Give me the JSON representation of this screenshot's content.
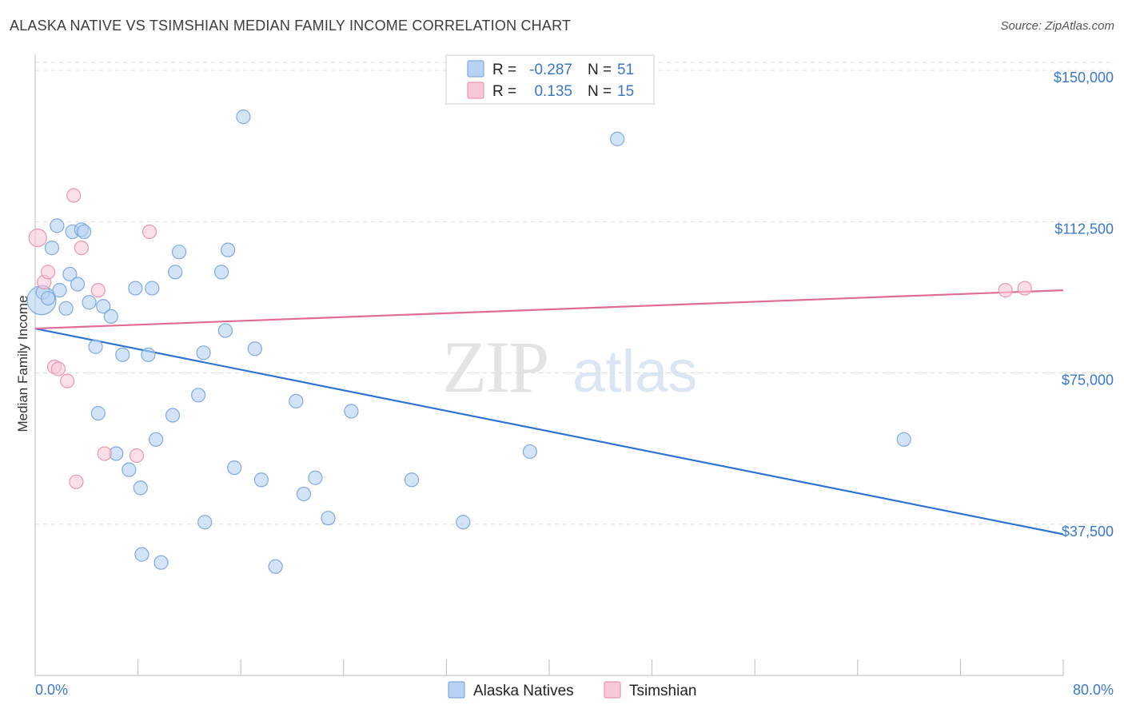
{
  "title": "ALASKA NATIVE VS TSIMSHIAN MEDIAN FAMILY INCOME CORRELATION CHART",
  "source": "Source: ZipAtlas.com",
  "watermark": {
    "zip": "ZIP",
    "atlas": "atlas"
  },
  "colors": {
    "alaska_fill": "#b8d2f2",
    "alaska_stroke": "#7eaae0",
    "alaska_line": "#2f74d0",
    "tsim_fill": "#f7c9d8",
    "tsim_stroke": "#e897b3",
    "tsim_line": "#e06b93",
    "axis_label": "#3a78c9",
    "grid": "#dddddd"
  },
  "legend": {
    "rows": [
      {
        "r_label": "R =",
        "r_value": "-0.287",
        "n_label": "N =",
        "n_value": "51"
      },
      {
        "r_label": "R =",
        "r_value": "0.135",
        "n_label": "N =",
        "n_value": "15"
      }
    ]
  },
  "bottom_legend": [
    "Alaska Natives",
    "Tsimshian"
  ],
  "chart_data": {
    "type": "scatter",
    "title": "ALASKA NATIVE VS TSIMSHIAN MEDIAN FAMILY INCOME CORRELATION CHART",
    "xlabel": "",
    "ylabel": "Median Family Income",
    "xlim": [
      0,
      80
    ],
    "ylim": [
      0,
      152000
    ],
    "x_tick_labels": [
      "0.0%",
      "80.0%"
    ],
    "y_ticks": [
      37500,
      75000,
      112500,
      150000
    ],
    "y_tick_labels": [
      "$37,500",
      "$75,000",
      "$112,500",
      "$150,000"
    ],
    "grid": true,
    "legend_position": "top-center",
    "series": [
      {
        "name": "Alaska Natives",
        "r": -0.287,
        "n": 51,
        "trend": {
          "x": [
            0,
            80
          ],
          "y": [
            86000,
            35000
          ]
        },
        "points": [
          [
            0.5,
            93000
          ],
          [
            0.6,
            95000
          ],
          [
            1.0,
            93500
          ],
          [
            1.3,
            106000
          ],
          [
            1.7,
            111500
          ],
          [
            1.9,
            95500
          ],
          [
            2.4,
            91000
          ],
          [
            2.7,
            99500
          ],
          [
            2.9,
            110000
          ],
          [
            3.3,
            97000
          ],
          [
            3.6,
            110500
          ],
          [
            3.8,
            110000
          ],
          [
            4.2,
            92500
          ],
          [
            4.7,
            81500
          ],
          [
            4.9,
            65000
          ],
          [
            5.3,
            91500
          ],
          [
            5.9,
            89000
          ],
          [
            6.3,
            55000
          ],
          [
            6.8,
            79500
          ],
          [
            7.3,
            51000
          ],
          [
            7.8,
            96000
          ],
          [
            8.2,
            46500
          ],
          [
            8.3,
            30000
          ],
          [
            8.8,
            79500
          ],
          [
            9.1,
            96000
          ],
          [
            9.4,
            58500
          ],
          [
            9.8,
            28000
          ],
          [
            10.7,
            64500
          ],
          [
            10.9,
            100000
          ],
          [
            11.2,
            105000
          ],
          [
            12.7,
            69500
          ],
          [
            13.1,
            80000
          ],
          [
            13.2,
            38000
          ],
          [
            14.5,
            100000
          ],
          [
            14.8,
            85500
          ],
          [
            15.0,
            105500
          ],
          [
            15.5,
            51500
          ],
          [
            16.2,
            138500
          ],
          [
            17.1,
            81000
          ],
          [
            17.6,
            48500
          ],
          [
            18.7,
            27000
          ],
          [
            20.3,
            68000
          ],
          [
            20.9,
            45000
          ],
          [
            21.8,
            49000
          ],
          [
            22.8,
            39000
          ],
          [
            24.6,
            65500
          ],
          [
            29.3,
            48500
          ],
          [
            33.3,
            38000
          ],
          [
            38.5,
            55500
          ],
          [
            45.3,
            133000
          ],
          [
            67.6,
            58500
          ]
        ]
      },
      {
        "name": "Tsimshian",
        "r": 0.135,
        "n": 15,
        "trend": {
          "x": [
            0,
            80
          ],
          "y": [
            86000,
            95500
          ]
        },
        "points": [
          [
            0.2,
            108500
          ],
          [
            0.7,
            97500
          ],
          [
            1.0,
            100000
          ],
          [
            1.5,
            76500
          ],
          [
            1.8,
            76000
          ],
          [
            2.5,
            73000
          ],
          [
            3.0,
            119000
          ],
          [
            3.2,
            48000
          ],
          [
            3.6,
            106000
          ],
          [
            4.9,
            95500
          ],
          [
            5.4,
            55000
          ],
          [
            7.9,
            54500
          ],
          [
            8.9,
            110000
          ],
          [
            75.5,
            95500
          ],
          [
            77.0,
            96000
          ]
        ]
      }
    ]
  }
}
